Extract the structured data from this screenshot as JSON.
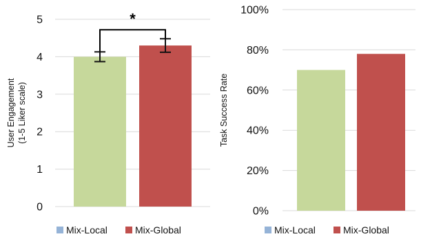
{
  "colors": {
    "mix_local_bar": "#c6d89b",
    "mix_global_bar": "#c0504d",
    "mix_local_legend": "#95b3d7",
    "mix_global_legend": "#c0504d",
    "gridline": "#d9d9d9",
    "axis_line": "#d9d9d9",
    "error_bar": "#111111"
  },
  "chart_data": [
    {
      "type": "bar",
      "title": "",
      "xlabel": "",
      "ylabel": "User Engagement (1-5 Liker scale)",
      "ylabel_lines": [
        "User Engagement",
        "(1-5 Liker scale)"
      ],
      "ylim": [
        0,
        5
      ],
      "yticks": [
        0,
        1,
        2,
        3,
        4,
        5
      ],
      "ytick_labels": [
        "0",
        "1",
        "2",
        "3",
        "4",
        "5"
      ],
      "grid": true,
      "legend_position": "bottom",
      "categories": [
        "Mix-Local",
        "Mix-Global"
      ],
      "values": [
        4.0,
        4.3
      ],
      "error": [
        0.13,
        0.18
      ],
      "significance": {
        "between": [
          0,
          1
        ],
        "label": "*",
        "y": 4.72
      }
    },
    {
      "type": "bar",
      "title": "",
      "xlabel": "",
      "ylabel": "Task Success Rate",
      "ylim": [
        0,
        1
      ],
      "yticks": [
        0,
        0.2,
        0.4,
        0.6,
        0.8,
        1.0
      ],
      "ytick_labels": [
        "0%",
        "20%",
        "40%",
        "60%",
        "80%",
        "100%"
      ],
      "grid": true,
      "legend_position": "bottom",
      "categories": [
        "Mix-Local",
        "Mix-Global"
      ],
      "values": [
        0.7,
        0.78
      ]
    }
  ],
  "legend": [
    "Mix-Local",
    "Mix-Global"
  ]
}
